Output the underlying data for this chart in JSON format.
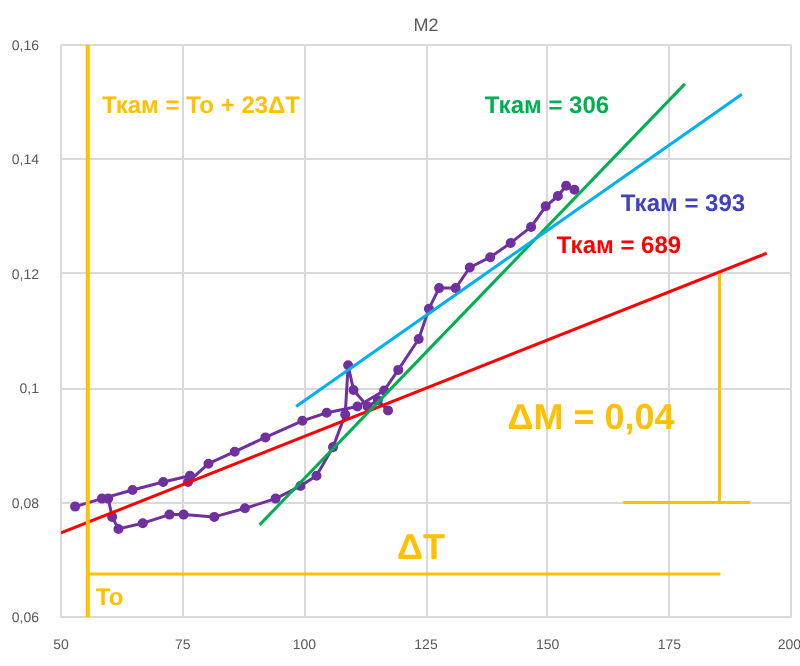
{
  "chart_data": {
    "type": "line",
    "title": "M2",
    "xlim": [
      50,
      200
    ],
    "ylim": [
      0.06,
      0.16
    ],
    "xticks": [
      50,
      75,
      100,
      125,
      150,
      175,
      200
    ],
    "yticks": [
      {
        "value": 0.06,
        "label": "0,06"
      },
      {
        "value": 0.08,
        "label": "0,08"
      },
      {
        "value": 0.1,
        "label": "0,1"
      },
      {
        "value": 0.12,
        "label": "0,12"
      },
      {
        "value": 0.14,
        "label": "0,14"
      },
      {
        "value": 0.16,
        "label": "0,16"
      }
    ],
    "grid": true,
    "series": [
      {
        "color": "#7030a0",
        "marker": "circle",
        "x": [
          52.9,
          58.4,
          64.7,
          71.0,
          76.5,
          76.1,
          80.3,
          85.7,
          92.0,
          99.6,
          104.6,
          110.9,
          116.4,
          119.3,
          123.5,
          125.6,
          127.7,
          131.1,
          134.0,
          138.2,
          142.4,
          146.6,
          149.6,
          152.1,
          153.8,
          155.5
        ],
        "values": [
          0.0793,
          0.0807,
          0.0822,
          0.0836,
          0.0847,
          0.0836,
          0.0868,
          0.0889,
          0.0914,
          0.0943,
          0.0957,
          0.0968,
          0.0996,
          0.1032,
          0.1086,
          0.1139,
          0.1175,
          0.1175,
          0.1211,
          0.1229,
          0.1254,
          0.1282,
          0.1318,
          0.1336,
          0.1354,
          0.1347
        ]
      },
      {
        "color": "#7030a0",
        "marker": "circle",
        "x": [
          59.7,
          60.5,
          61.8,
          66.8,
          72.3,
          75.2,
          81.5,
          87.8,
          94.1,
          99.2,
          102.5,
          105.9,
          108.4,
          109.0,
          110.1,
          113.0,
          115.1,
          117.2
        ],
        "values": [
          0.0807,
          0.0775,
          0.0754,
          0.0764,
          0.0779,
          0.0779,
          0.0775,
          0.079,
          0.0807,
          0.0829,
          0.0847,
          0.0897,
          0.0954,
          0.104,
          0.0997,
          0.0968,
          0.0979,
          0.0961
        ]
      },
      {
        "color": "#ff0000",
        "marker": "none",
        "x": [
          50,
          195
        ],
        "values": [
          0.0747,
          0.1236
        ]
      },
      {
        "color": "#00b050",
        "marker": "none",
        "x": [
          90.8,
          178.2
        ],
        "values": [
          0.0761,
          0.1532
        ]
      },
      {
        "color": "#00b0f0",
        "marker": "none",
        "x": [
          98.3,
          189.9
        ],
        "values": [
          0.0968,
          0.1514
        ]
      },
      {
        "color": "#ffc000",
        "marker": "none",
        "x": [
          55.5,
          185.5
        ],
        "values": [
          0.0675,
          0.0675
        ]
      },
      {
        "color": "#ffc000",
        "marker": "none",
        "x": [
          185.3,
          185.3
        ],
        "values": [
          0.12,
          0.08
        ]
      },
      {
        "color": "#ffc000",
        "marker": "none",
        "x": [
          165.5,
          191.6
        ],
        "values": [
          0.08,
          0.08
        ]
      }
    ],
    "ref_lines": [
      {
        "axis": "x",
        "value": 55.5,
        "label": "To",
        "color": "#ffc000"
      }
    ],
    "annotations": [
      "Ткам = То + 23ΔТ",
      "Ткам = 306",
      "Ткам = 393",
      "Ткам = 689",
      "ΔM = 0,04",
      "ΔT"
    ]
  }
}
